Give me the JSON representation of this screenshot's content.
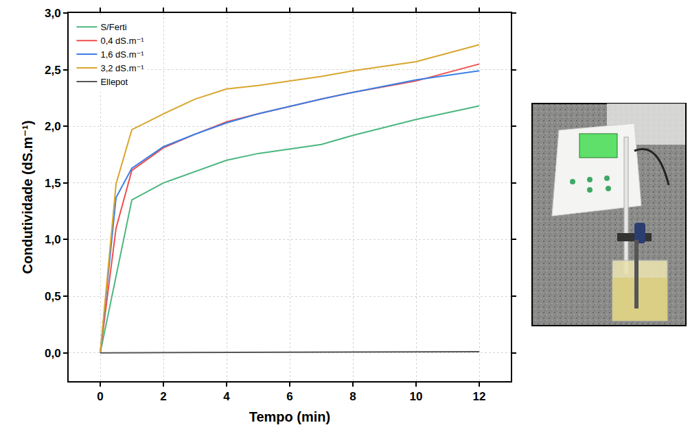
{
  "chart_data": {
    "type": "line",
    "x_label": "Tempo (min)",
    "y_label": "Condutividade (dS.m⁻¹)",
    "series": [
      {
        "name": "S/Ferti",
        "color": "#4bb67f",
        "x": [
          0,
          1,
          2,
          3,
          4,
          5,
          7,
          8,
          10,
          12
        ],
        "values": [
          0,
          1.35,
          1.5,
          1.6,
          1.7,
          1.76,
          1.84,
          1.92,
          2.06,
          2.18
        ]
      },
      {
        "name": "0,4 dS.m⁻¹",
        "color": "#ef4d4d",
        "x": [
          0,
          0.5,
          1,
          2,
          3,
          4,
          5,
          7,
          8,
          10,
          12
        ],
        "values": [
          0,
          1.1,
          1.61,
          1.81,
          1.93,
          2.04,
          2.11,
          2.24,
          2.3,
          2.4,
          2.55
        ]
      },
      {
        "name": "1,6 dS.m⁻¹",
        "color": "#3b7fe6",
        "x": [
          0,
          0.5,
          1,
          2,
          3,
          4,
          5,
          7,
          8,
          10,
          12
        ],
        "values": [
          0,
          1.37,
          1.63,
          1.82,
          1.93,
          2.03,
          2.11,
          2.24,
          2.3,
          2.41,
          2.49
        ]
      },
      {
        "name": "3,2 dS.m⁻¹",
        "color": "#d8a62c",
        "x": [
          0,
          0.5,
          1,
          2,
          3,
          4,
          5,
          7,
          8,
          10,
          12
        ],
        "values": [
          0,
          1.49,
          1.97,
          2.11,
          2.24,
          2.33,
          2.36,
          2.44,
          2.49,
          2.57,
          2.72
        ]
      },
      {
        "name": "Ellepot",
        "color": "#555555",
        "x": [
          0,
          12
        ],
        "values": [
          0,
          0.01
        ]
      }
    ],
    "xlim": [
      -1,
      13
    ],
    "xticks": [
      0,
      2,
      4,
      6,
      8,
      10,
      12
    ],
    "ylim": [
      -0.25,
      3.0
    ],
    "yticks": [
      {
        "value": 0,
        "label": "0,0"
      },
      {
        "value": 0.5,
        "label": "0,5"
      },
      {
        "value": 1,
        "label": "1,0"
      },
      {
        "value": 1.5,
        "label": "1,5"
      },
      {
        "value": 2,
        "label": "2,0"
      },
      {
        "value": 2.5,
        "label": "2,5"
      },
      {
        "value": 3,
        "label": "3,0"
      }
    ],
    "grid": true,
    "legend": "upper left"
  }
}
